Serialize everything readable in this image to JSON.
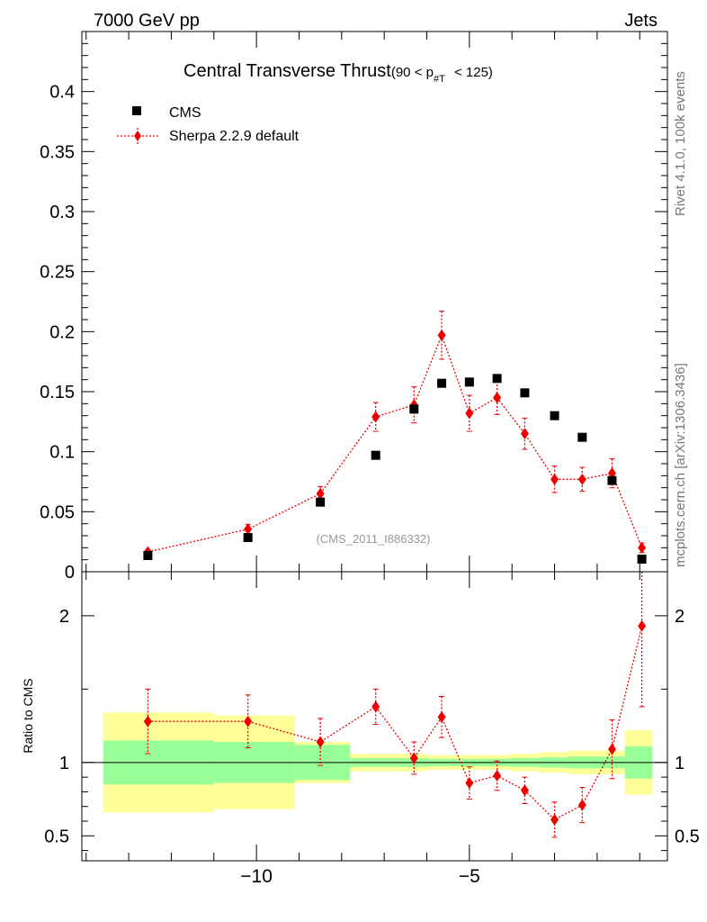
{
  "header": {
    "energy_label": "7000 GeV pp",
    "process_label": "Jets",
    "side_label_version": "Rivet 4.1.0,  100k events",
    "side_label_url": "mcplots.cern.ch [arXiv:1306.3436]",
    "analysis_id": "(CMS_2011_I886332)"
  },
  "title": {
    "main": "Central Transverse Thrust",
    "cut_prefix": "(90 < p",
    "cut_sub": "#T",
    "cut_suffix": " < 125)"
  },
  "legend": {
    "data_label": "CMS",
    "mc_label": "Sherpa 2.2.9 default"
  },
  "colors": {
    "mc": "#ee0000",
    "data": "#000000",
    "band_inner": "#99ff99",
    "band_outer": "#ffff99"
  },
  "chart_data": {
    "type": "scatter",
    "xlim": [
      -14.1,
      -0.35
    ],
    "main": {
      "ylim": [
        0,
        0.45
      ],
      "ytick_values": [
        0,
        0.05,
        0.1,
        0.15,
        0.2,
        0.25,
        0.3,
        0.35,
        0.4
      ],
      "ytick_labels": [
        "0",
        "0.05",
        "0.1",
        "0.15",
        "0.2",
        "0.25",
        "0.3",
        "0.35",
        "0.4"
      ]
    },
    "ratio": {
      "ylabel": "Ratio to CMS",
      "ylim": [
        0.33,
        2.3
      ],
      "ytick_values": [
        0.5,
        1,
        2
      ],
      "ytick_labels": [
        "0.5",
        "1",
        "2"
      ]
    },
    "xtick_values": [
      -10,
      -5
    ],
    "xtick_labels": [
      "−10",
      "−5"
    ],
    "bins": [
      {
        "lo": -13.6,
        "hi": -11.0,
        "x": -12.55,
        "data": 0.0135,
        "mc": 0.0165,
        "mc_err": 0.002,
        "ratio": 1.28,
        "ratio_err": 0.22,
        "band_in": 0.15,
        "band_out": 0.34
      },
      {
        "lo": -11.0,
        "hi": -9.1,
        "x": -10.2,
        "data": 0.0285,
        "mc": 0.0355,
        "mc_err": 0.004,
        "ratio": 1.28,
        "ratio_err": 0.18,
        "band_in": 0.14,
        "band_out": 0.32
      },
      {
        "lo": -9.1,
        "hi": -7.8,
        "x": -8.5,
        "data": 0.058,
        "mc": 0.065,
        "mc_err": 0.006,
        "ratio": 1.14,
        "ratio_err": 0.16,
        "band_in": 0.12,
        "band_out": 0.14
      },
      {
        "lo": -7.8,
        "hi": -6.6,
        "x": -7.2,
        "data": 0.097,
        "mc": 0.129,
        "mc_err": 0.012,
        "ratio": 1.38,
        "ratio_err": 0.12,
        "band_in": 0.03,
        "band_out": 0.06
      },
      {
        "lo": -6.6,
        "hi": -6.0,
        "x": -6.3,
        "data": 0.1355,
        "mc": 0.139,
        "mc_err": 0.015,
        "ratio": 1.03,
        "ratio_err": 0.11,
        "band_in": 0.03,
        "band_out": 0.06
      },
      {
        "lo": -6.0,
        "hi": -5.4,
        "x": -5.65,
        "data": 0.157,
        "mc": 0.197,
        "mc_err": 0.02,
        "ratio": 1.31,
        "ratio_err": 0.14,
        "band_in": 0.025,
        "band_out": 0.05
      },
      {
        "lo": -5.4,
        "hi": -4.7,
        "x": -5.0,
        "data": 0.158,
        "mc": 0.132,
        "mc_err": 0.015,
        "ratio": 0.86,
        "ratio_err": 0.11,
        "band_in": 0.025,
        "band_out": 0.05
      },
      {
        "lo": -4.7,
        "hi": -4.05,
        "x": -4.35,
        "data": 0.161,
        "mc": 0.145,
        "mc_err": 0.014,
        "ratio": 0.91,
        "ratio_err": 0.1,
        "band_in": 0.025,
        "band_out": 0.05
      },
      {
        "lo": -4.05,
        "hi": -3.35,
        "x": -3.7,
        "data": 0.149,
        "mc": 0.115,
        "mc_err": 0.013,
        "ratio": 0.81,
        "ratio_err": 0.09,
        "band_in": 0.03,
        "band_out": 0.06
      },
      {
        "lo": -3.35,
        "hi": -2.7,
        "x": -3.0,
        "data": 0.13,
        "mc": 0.077,
        "mc_err": 0.011,
        "ratio": 0.61,
        "ratio_err": 0.12,
        "band_in": 0.035,
        "band_out": 0.07
      },
      {
        "lo": -2.7,
        "hi": -2.0,
        "x": -2.35,
        "data": 0.112,
        "mc": 0.077,
        "mc_err": 0.01,
        "ratio": 0.71,
        "ratio_err": 0.12,
        "band_in": 0.04,
        "band_out": 0.08
      },
      {
        "lo": -2.0,
        "hi": -1.35,
        "x": -1.65,
        "data": 0.076,
        "mc": 0.082,
        "mc_err": 0.012,
        "ratio": 1.09,
        "ratio_err": 0.2,
        "band_in": 0.04,
        "band_out": 0.08
      },
      {
        "lo": -1.35,
        "hi": -0.7,
        "x": -0.95,
        "data": 0.0105,
        "mc": 0.02,
        "mc_err": 0.004,
        "ratio": 1.93,
        "ratio_err": 0.55,
        "band_in": 0.11,
        "band_out": 0.22
      }
    ]
  }
}
